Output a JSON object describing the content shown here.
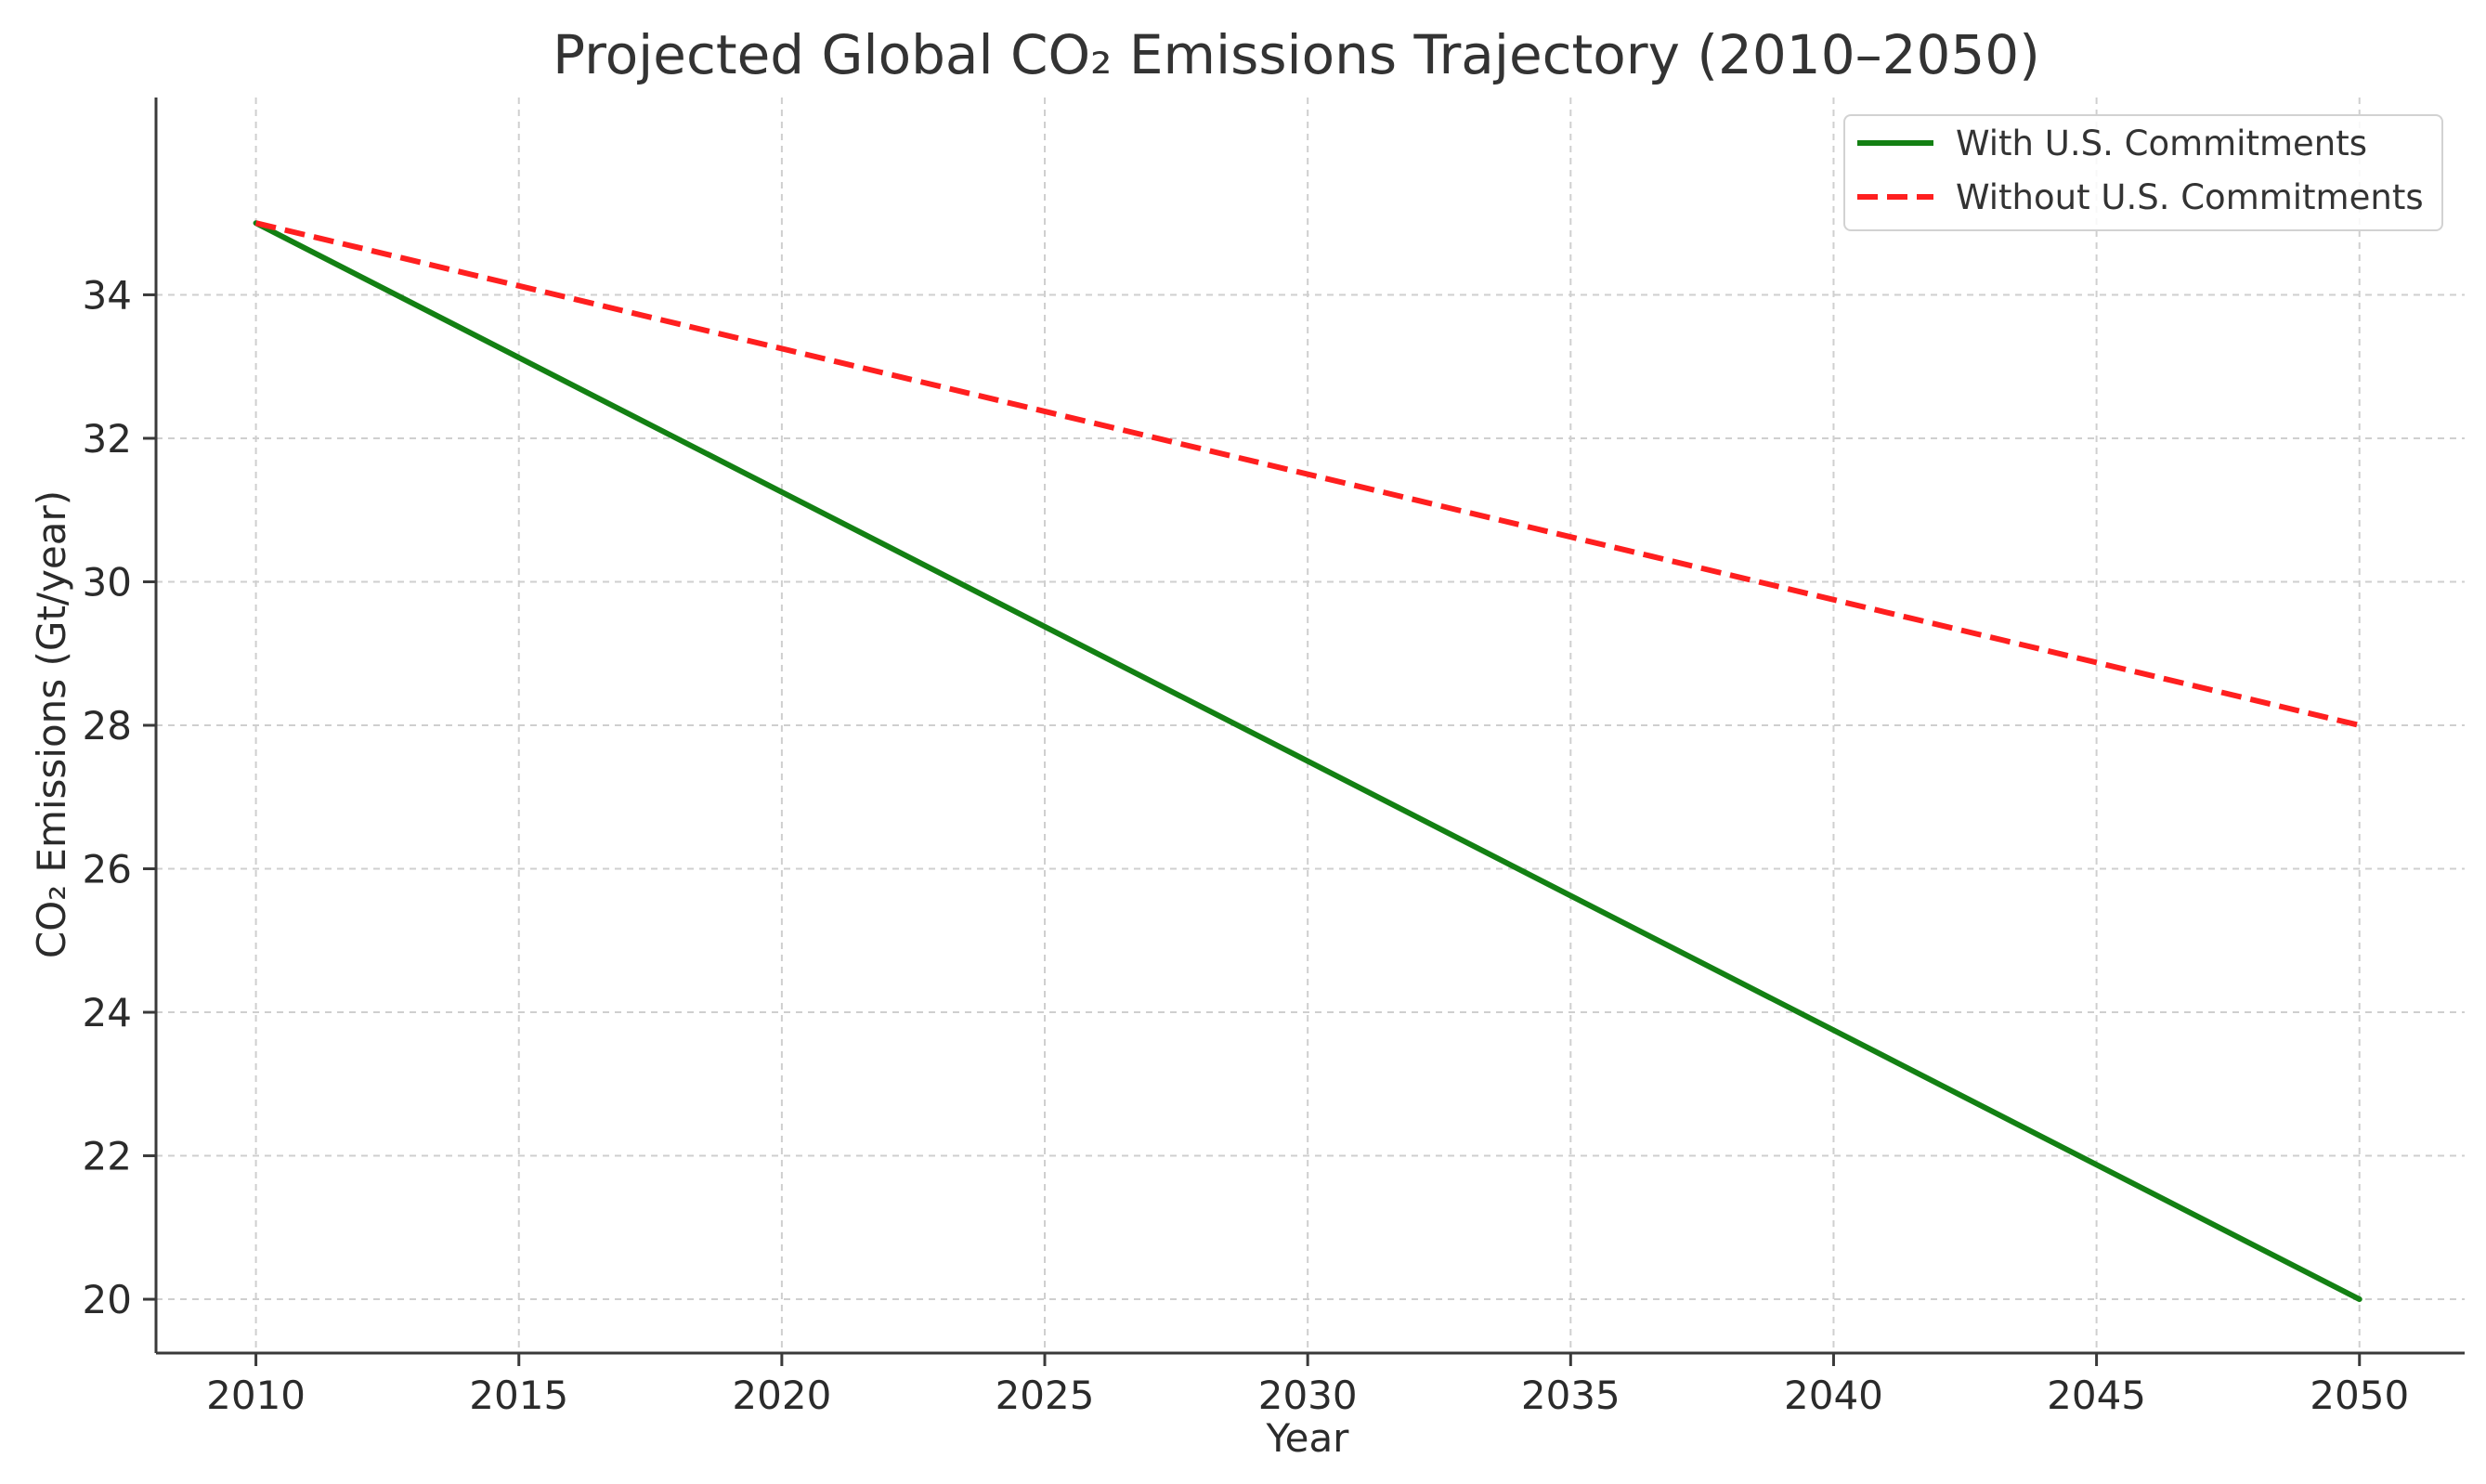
{
  "chart_data": {
    "type": "line",
    "title": "Projected Global CO₂ Emissions Trajectory (2010–2050)",
    "xlabel": "Year",
    "ylabel": "CO₂ Emissions (Gt/year)",
    "xlim": [
      2008.1,
      2052.0
    ],
    "ylim": [
      19.25,
      36.75
    ],
    "x_ticks": [
      2010,
      2015,
      2020,
      2025,
      2030,
      2035,
      2040,
      2045,
      2050
    ],
    "y_ticks": [
      20,
      22,
      24,
      26,
      28,
      30,
      32,
      34
    ],
    "grid": true,
    "legend_position": "top-right",
    "series": [
      {
        "name": "With U.S. Commitments",
        "x": [
          2010,
          2050
        ],
        "y": [
          35,
          20
        ],
        "color": "#138013",
        "style": "solid"
      },
      {
        "name": "Without U.S. Commitments",
        "x": [
          2010,
          2050
        ],
        "y": [
          35,
          28
        ],
        "color": "#ff1f1f",
        "style": "dashed"
      }
    ]
  },
  "colors": {
    "axis": "#3a3a3a",
    "grid": "#cfcfcf",
    "text": "#2b2b2b"
  }
}
